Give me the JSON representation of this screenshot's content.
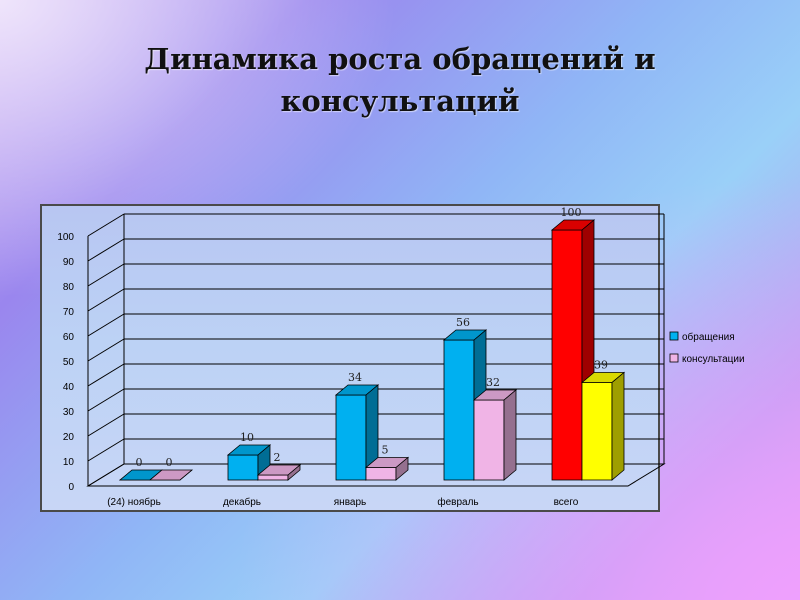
{
  "title_line1": "Динамика роста обращений и",
  "title_line2": "консультаций",
  "chart_data": {
    "type": "bar",
    "categories": [
      "(24) ноябрь",
      "декабрь",
      "январь",
      "февраль",
      "всего"
    ],
    "series": [
      {
        "name": "обращения",
        "values": [
          0,
          10,
          34,
          56,
          100
        ],
        "color": "#00b0f0",
        "colors": [
          "#00b0f0",
          "#00b0f0",
          "#00b0f0",
          "#00b0f0",
          "#ff0000"
        ]
      },
      {
        "name": "консультации",
        "values": [
          0,
          2,
          5,
          32,
          39
        ],
        "color": "#f0b4e6",
        "colors": [
          "#f0b4e6",
          "#f0b4e6",
          "#f0b4e6",
          "#f0b4e6",
          "#ffff00"
        ]
      }
    ],
    "ylim": [
      0,
      100
    ],
    "yticks": [
      0,
      10,
      20,
      30,
      40,
      50,
      60,
      70,
      80,
      90,
      100
    ],
    "grid": true,
    "legend": "right",
    "style": "3d-clustered-column"
  }
}
